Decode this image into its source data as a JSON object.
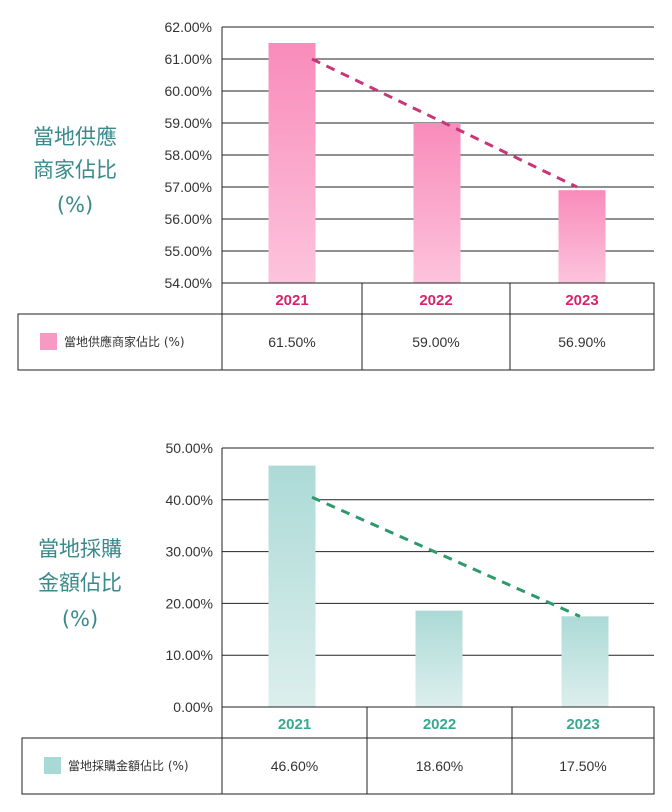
{
  "chart_data": [
    {
      "type": "bar",
      "side_title": [
        "當地供應",
        "商家佔比",
        "(%)"
      ],
      "categories": [
        "2021",
        "2022",
        "2023"
      ],
      "series": [
        {
          "name": "當地供應商家佔比 (%)",
          "values": [
            61.5,
            59.0,
            56.9
          ]
        }
      ],
      "value_labels": [
        "61.50%",
        "59.00%",
        "56.90%"
      ],
      "yticks": [
        "54.00%",
        "55.00%",
        "56.00%",
        "57.00%",
        "58.00%",
        "59.00%",
        "60.00%",
        "61.00%",
        "62.00%"
      ],
      "ylim": [
        54,
        62
      ],
      "trendline": {
        "style": "dashed",
        "from": 61.0,
        "to": 57.0
      },
      "grid": true,
      "legend": "table-row",
      "colors": {
        "bar_top": "#f98bbb",
        "bar_bottom": "#fcc4dc",
        "category": "#d6246e",
        "trend": "#c8357a",
        "legend_swatch": "#f79ac3"
      }
    },
    {
      "type": "bar",
      "side_title": [
        "當地採購",
        "金額佔比",
        "(%)"
      ],
      "categories": [
        "2021",
        "2022",
        "2023"
      ],
      "series": [
        {
          "name": "當地採購金額佔比 (%)",
          "values": [
            46.6,
            18.6,
            17.5
          ]
        }
      ],
      "value_labels": [
        "46.60%",
        "18.60%",
        "17.50%"
      ],
      "yticks": [
        "0.00%",
        "10.00%",
        "20.00%",
        "30.00%",
        "40.00%",
        "50.00%"
      ],
      "ylim": [
        0,
        50
      ],
      "trendline": {
        "style": "dashed",
        "from": 40.5,
        "to": 17.5
      },
      "grid": true,
      "legend": "table-row",
      "colors": {
        "bar_top": "#acdad7",
        "bar_bottom": "#dcefed",
        "category": "#3aa891",
        "trend": "#2e9a6c",
        "legend_swatch": "#a9d9d6"
      }
    }
  ]
}
